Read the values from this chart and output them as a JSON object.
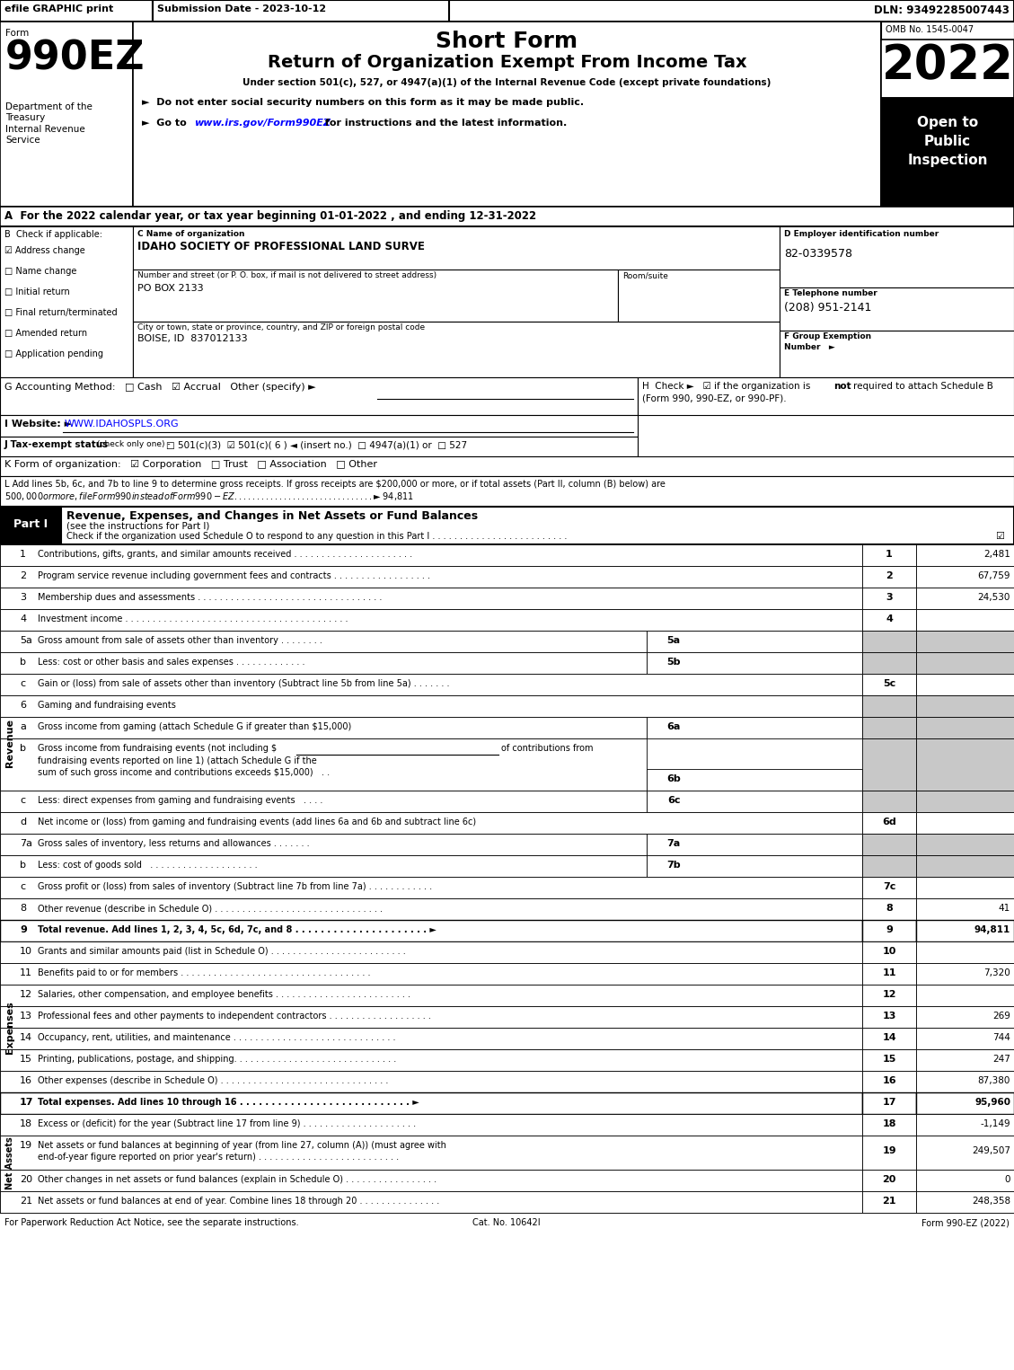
{
  "form_number": "990EZ",
  "year": "2022",
  "omb": "OMB No. 1545-0047",
  "open_to": "Open to\nPublic\nInspection",
  "dept": "Department of the\nTreasury\nInternal Revenue\nService",
  "ein": "82-0339578",
  "phone": "(208) 951-2141",
  "org_name": "IDAHO SOCIETY OF PROFESSIONAL LAND SURVE",
  "street_address": "PO BOX 2133",
  "city_address": "BOISE, ID  837012133",
  "footer_left": "For Paperwork Reduction Act Notice, see the separate instructions.",
  "footer_cat": "Cat. No. 10642I",
  "footer_right": "Form 990-EZ (2022)"
}
